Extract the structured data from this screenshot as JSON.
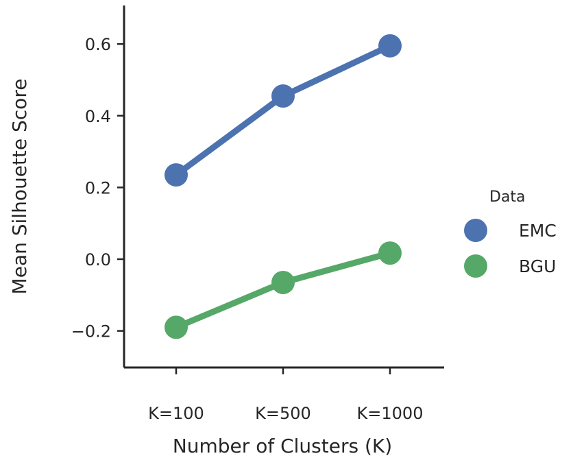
{
  "chart_data": {
    "type": "line",
    "categories": [
      "K=100",
      "K=500",
      "K=1000"
    ],
    "series": [
      {
        "name": "EMC",
        "color": "#4c72b0",
        "values": [
          0.235,
          0.455,
          0.595
        ]
      },
      {
        "name": "BGU",
        "color": "#55a868",
        "values": [
          -0.19,
          -0.065,
          0.017
        ]
      }
    ],
    "xlabel": "Number of Clusters (K)",
    "ylabel": "Mean Silhouette Score",
    "ylim": [
      -0.3,
      0.7
    ],
    "yticks": [
      -0.2,
      0.0,
      0.2,
      0.4,
      0.6
    ],
    "ytick_labels": [
      "−0.2",
      "0.0",
      "0.2",
      "0.4",
      "0.6"
    ],
    "grid": false,
    "legend": {
      "title": "Data",
      "placement": "right"
    }
  }
}
